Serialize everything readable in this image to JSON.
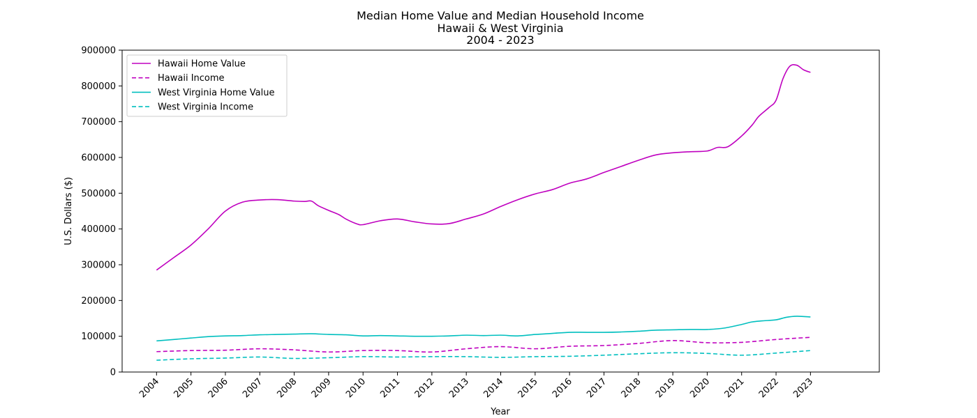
{
  "chart_data": {
    "type": "line",
    "title_lines": [
      "Median Home Value and Median Household Income",
      "Hawaii & West Virginia",
      "2004 - 2023"
    ],
    "xlabel": "Year",
    "ylabel": "U.S. Dollars ($)",
    "xlim": [
      2003,
      2025
    ],
    "ylim": [
      0,
      900000
    ],
    "x_ticks": [
      2004,
      2005,
      2006,
      2007,
      2008,
      2009,
      2010,
      2011,
      2012,
      2013,
      2014,
      2015,
      2016,
      2017,
      2018,
      2019,
      2020,
      2021,
      2022,
      2023
    ],
    "x_tick_labels": [
      "2004",
      "2005",
      "2006",
      "2007",
      "2008",
      "2009",
      "2010",
      "2011",
      "2012",
      "2013",
      "2014",
      "2015",
      "2016",
      "2017",
      "2018",
      "2019",
      "2020",
      "2021",
      "2022",
      "2023"
    ],
    "y_ticks": [
      0,
      100000,
      200000,
      300000,
      400000,
      500000,
      600000,
      700000,
      800000,
      900000
    ],
    "y_tick_labels": [
      "0",
      "100000",
      "200000",
      "300000",
      "400000",
      "500000",
      "600000",
      "700000",
      "800000",
      "900000"
    ],
    "grid": false,
    "legend_position": "top-left",
    "series": [
      {
        "name": "Hawaii Home Value",
        "color": "#bf00bf",
        "dash": "solid",
        "x": [
          2004,
          2004.5,
          2005,
          2005.5,
          2006,
          2006.5,
          2007,
          2007.5,
          2008,
          2008.3,
          2008.5,
          2008.7,
          2009,
          2009.3,
          2009.5,
          2009.8,
          2010,
          2010.5,
          2011,
          2011.5,
          2012,
          2012.5,
          2013,
          2013.5,
          2014,
          2014.5,
          2015,
          2015.5,
          2016,
          2016.5,
          2017,
          2017.5,
          2018,
          2018.5,
          2019,
          2019.5,
          2020,
          2020.3,
          2020.6,
          2021,
          2021.3,
          2021.5,
          2021.8,
          2022,
          2022.2,
          2022.4,
          2022.6,
          2022.8,
          2023
        ],
        "values": [
          285000,
          320000,
          355000,
          400000,
          450000,
          475000,
          481000,
          482000,
          478000,
          477000,
          478000,
          465000,
          452000,
          440000,
          428000,
          415000,
          412000,
          423000,
          428000,
          420000,
          414000,
          415000,
          428000,
          442000,
          463000,
          482000,
          498000,
          510000,
          528000,
          540000,
          558000,
          575000,
          592000,
          607000,
          613000,
          616000,
          618000,
          628000,
          630000,
          660000,
          690000,
          715000,
          740000,
          760000,
          820000,
          855000,
          858000,
          845000,
          838000
        ]
      },
      {
        "name": "Hawaii Income",
        "color": "#bf00bf",
        "dash": "dashed",
        "x": [
          2004,
          2005,
          2006,
          2007,
          2008,
          2009,
          2010,
          2011,
          2012,
          2013,
          2014,
          2015,
          2016,
          2017,
          2018,
          2019,
          2020,
          2021,
          2022,
          2023
        ],
        "values": [
          57000,
          60000,
          61000,
          65000,
          62000,
          56000,
          60000,
          60000,
          56000,
          65000,
          71000,
          65000,
          72000,
          74000,
          80000,
          88000,
          82000,
          83000,
          91000,
          97000
        ]
      },
      {
        "name": "West Virginia Home Value",
        "color": "#00bfbf",
        "dash": "solid",
        "x": [
          2004,
          2004.5,
          2005,
          2005.5,
          2006,
          2006.5,
          2007,
          2007.5,
          2008,
          2008.5,
          2009,
          2009.5,
          2010,
          2010.5,
          2011,
          2011.5,
          2012,
          2012.5,
          2013,
          2013.5,
          2014,
          2014.5,
          2015,
          2015.5,
          2016,
          2016.5,
          2017,
          2017.5,
          2018,
          2018.5,
          2019,
          2019.5,
          2020,
          2020.5,
          2021,
          2021.3,
          2021.6,
          2022,
          2022.3,
          2022.6,
          2023
        ],
        "values": [
          87000,
          91000,
          95000,
          99000,
          101000,
          102000,
          104000,
          105000,
          106000,
          107000,
          105000,
          104000,
          101000,
          102000,
          101000,
          100000,
          100000,
          101000,
          103000,
          102000,
          103000,
          101000,
          105000,
          108000,
          111000,
          111000,
          111000,
          112000,
          114000,
          117000,
          118000,
          119000,
          119000,
          123000,
          133000,
          140000,
          143000,
          146000,
          153000,
          156000,
          154000
        ]
      },
      {
        "name": "West Virginia Income",
        "color": "#00bfbf",
        "dash": "dashed",
        "x": [
          2004,
          2005,
          2006,
          2007,
          2008,
          2009,
          2010,
          2011,
          2012,
          2013,
          2014,
          2015,
          2016,
          2017,
          2018,
          2019,
          2020,
          2021,
          2022,
          2023
        ],
        "values": [
          33000,
          37000,
          39000,
          42000,
          38000,
          40000,
          43000,
          42000,
          43000,
          43000,
          41000,
          43000,
          44000,
          47000,
          51000,
          54000,
          52000,
          47000,
          53000,
          60000
        ]
      }
    ]
  }
}
